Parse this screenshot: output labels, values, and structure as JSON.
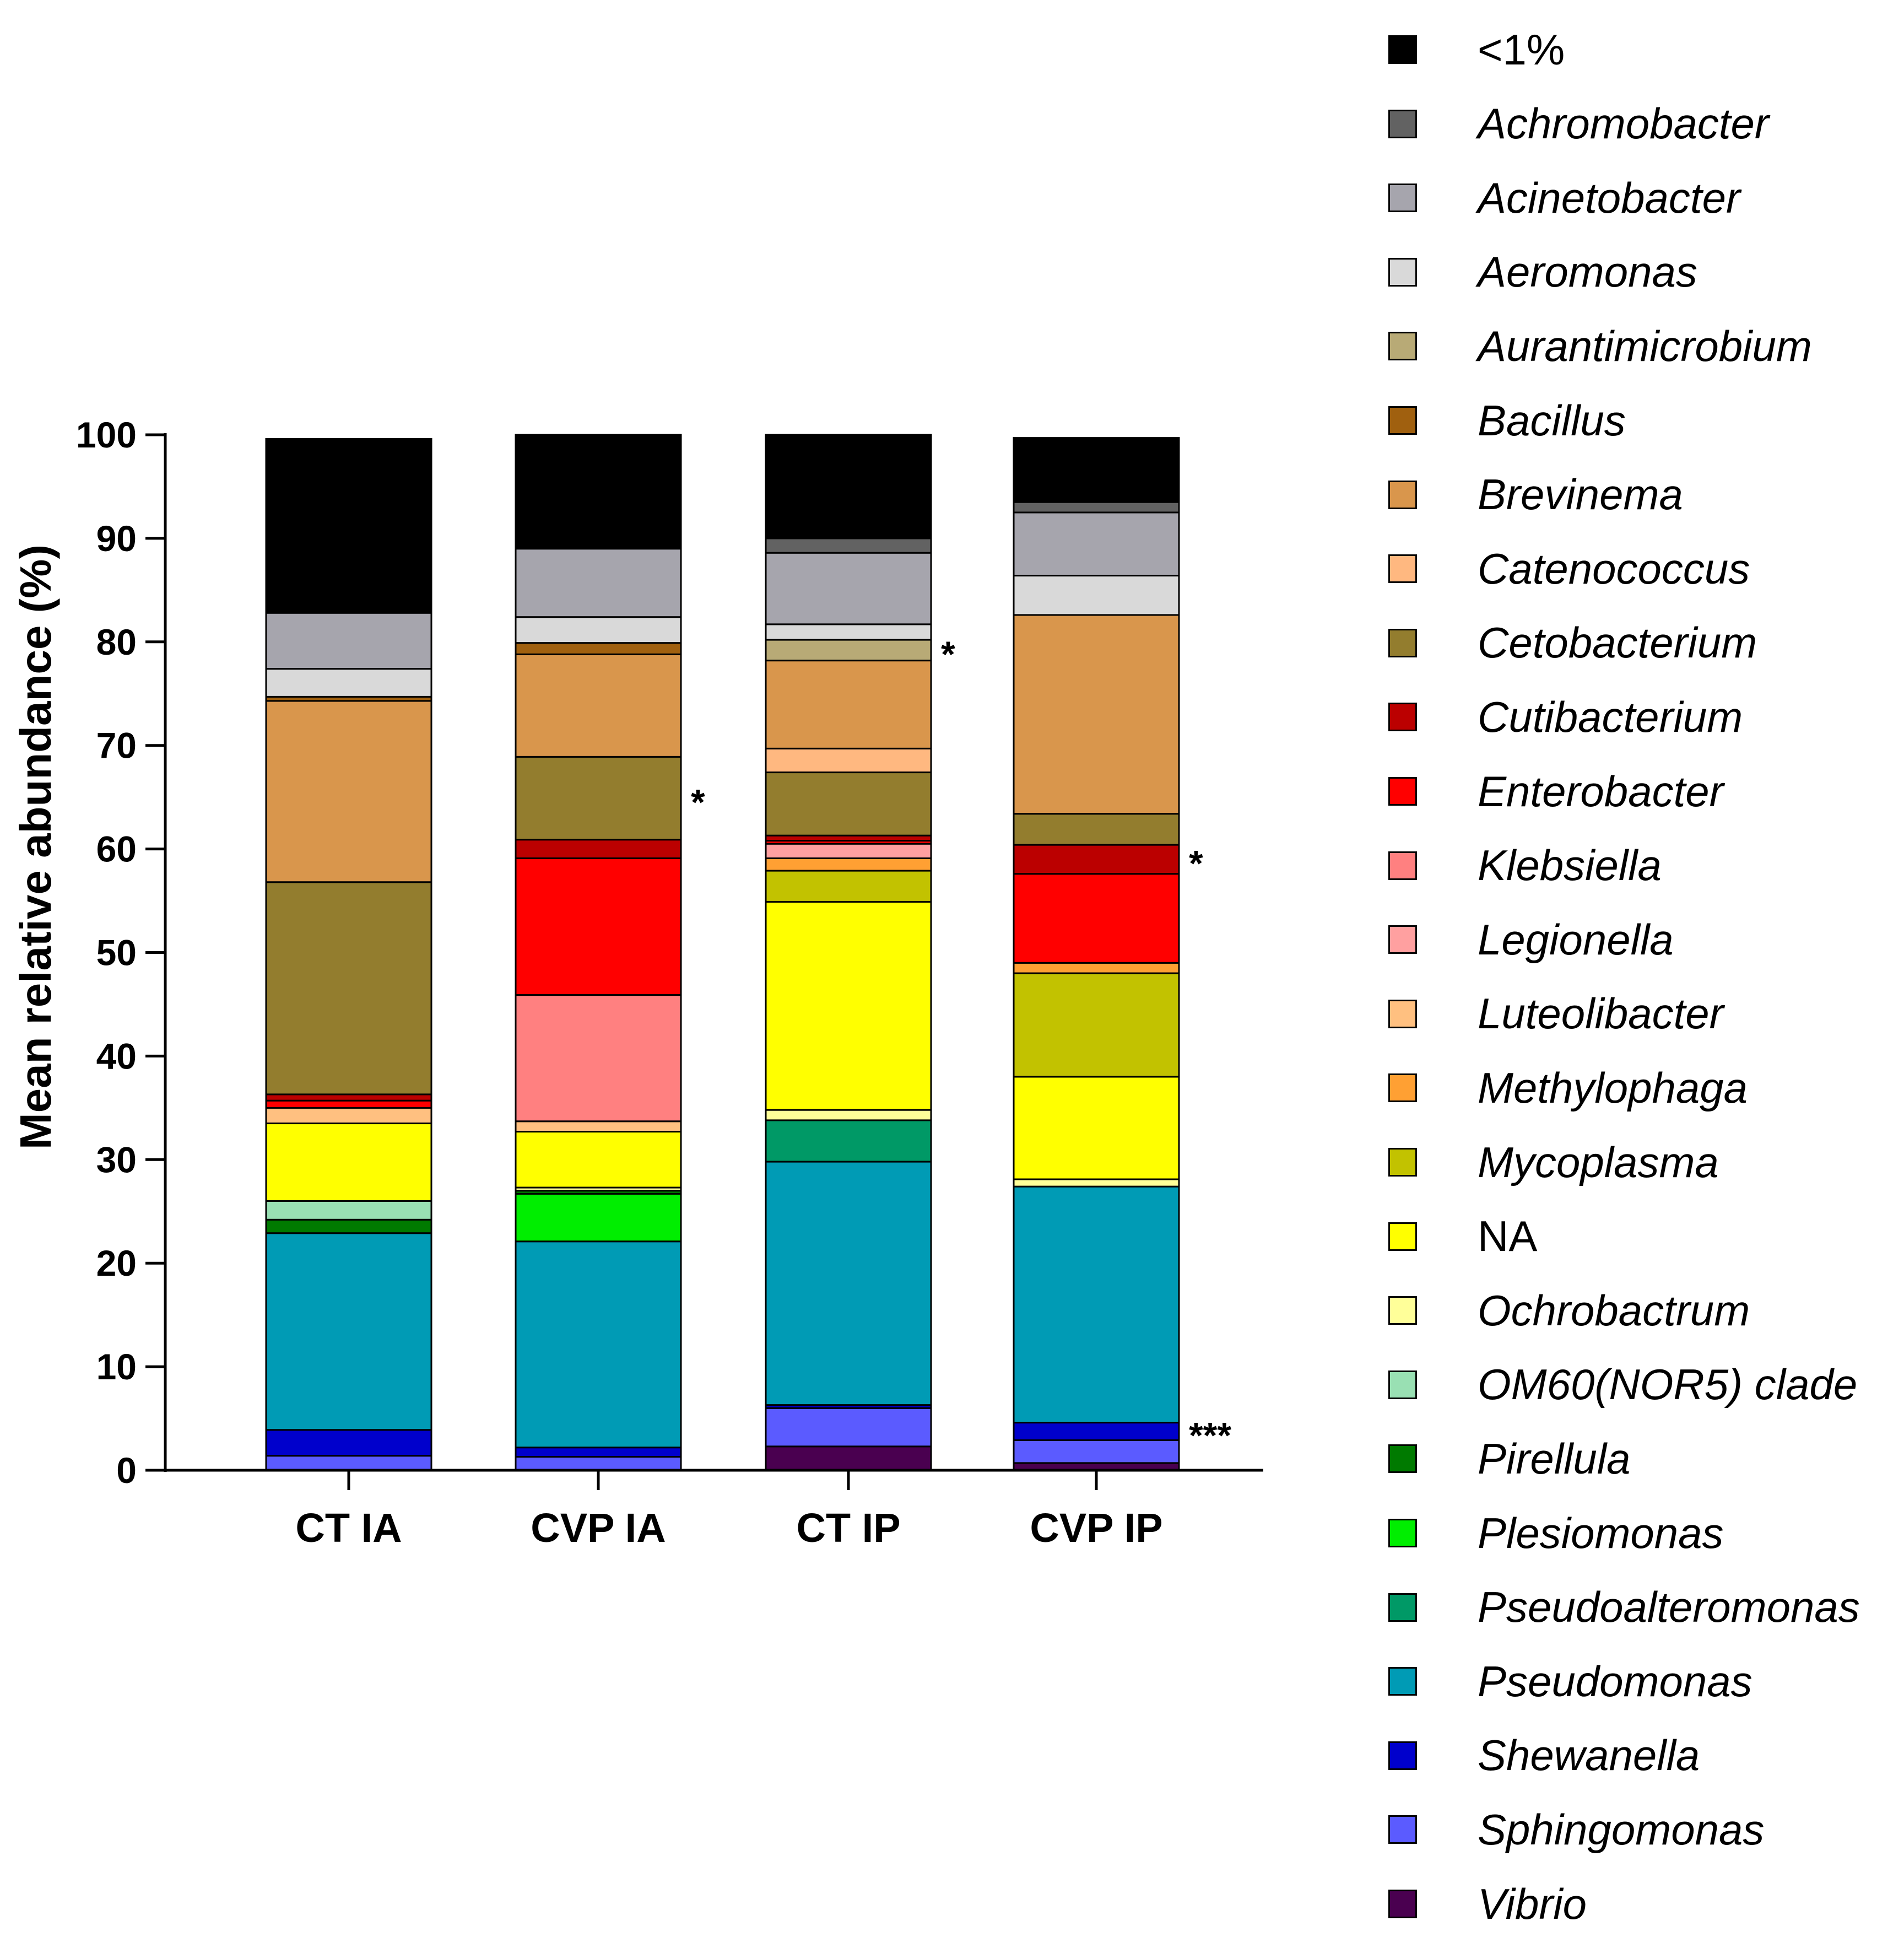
{
  "chart_data": {
    "type": "bar",
    "stacked": true,
    "title": "",
    "xlabel": "",
    "ylabel": "Mean relative abundance (%)",
    "ylim": [
      0,
      100
    ],
    "yticks": [
      "0",
      "10",
      "20",
      "30",
      "40",
      "50",
      "60",
      "70",
      "80",
      "90",
      "100"
    ],
    "grid": false,
    "legend_position": "right",
    "categories": [
      "CT IA",
      "CVP IA",
      "CT IP",
      "CVP IP"
    ],
    "significance": [
      {
        "category": "CVP IA",
        "genus": "Cetobacterium",
        "label": "*"
      },
      {
        "category": "CT IP",
        "genus": "Aurantimicrobium",
        "label": "*"
      },
      {
        "category": "CVP IP",
        "genus": "Cutibacterium",
        "label": "*"
      },
      {
        "category": "CVP IP",
        "genus": "Shewanella",
        "label": "***"
      }
    ],
    "series": [
      {
        "name": "Vibrio",
        "italic": true,
        "color": "#4A0050",
        "values": [
          0,
          0,
          2.3,
          0.7
        ]
      },
      {
        "name": "Sphingomonas",
        "italic": true,
        "color": "#5B5BFF",
        "values": [
          1.4,
          1.3,
          3.7,
          2.2
        ]
      },
      {
        "name": "Shewanella",
        "italic": true,
        "color": "#0000CC",
        "values": [
          2.5,
          0.9,
          0.3,
          1.7
        ]
      },
      {
        "name": "Pseudomonas",
        "italic": true,
        "color": "#009BB5",
        "values": [
          19.0,
          19.9,
          23.5,
          22.8
        ]
      },
      {
        "name": "Pseudoalteromonas",
        "italic": true,
        "color": "#009966",
        "values": [
          0,
          0,
          4.0,
          0
        ]
      },
      {
        "name": "Plesiomonas",
        "italic": true,
        "color": "#00EE00",
        "values": [
          0,
          4.6,
          0,
          0
        ]
      },
      {
        "name": "Pirellula",
        "italic": true,
        "color": "#007A00",
        "values": [
          1.3,
          0.3,
          0,
          0
        ]
      },
      {
        "name": "OM60(NOR5) clade",
        "italic": true,
        "color": "#99E0B3",
        "values": [
          1.8,
          0,
          0,
          0
        ]
      },
      {
        "name": "Ochrobactrum",
        "italic": true,
        "color": "#FFFF99",
        "values": [
          0,
          0.3,
          1.0,
          0.7
        ]
      },
      {
        "name": "NA",
        "italic": false,
        "color": "#FFFF00",
        "values": [
          7.5,
          5.4,
          20.1,
          9.9
        ]
      },
      {
        "name": "Mycoplasma",
        "italic": true,
        "color": "#C2C200",
        "values": [
          0,
          0,
          3.0,
          10.0
        ]
      },
      {
        "name": "Methylophaga",
        "italic": true,
        "color": "#FFA033",
        "values": [
          0,
          0,
          1.2,
          1.0
        ]
      },
      {
        "name": "Luteolibacter",
        "italic": true,
        "color": "#FFC080",
        "values": [
          1.5,
          1.0,
          0,
          0
        ]
      },
      {
        "name": "Legionella",
        "italic": true,
        "color": "#FFA0A0",
        "values": [
          0,
          0,
          1.4,
          0
        ]
      },
      {
        "name": "Klebsiella",
        "italic": true,
        "color": "#FF8080",
        "values": [
          0,
          12.2,
          0,
          0
        ]
      },
      {
        "name": "Enterobacter",
        "italic": true,
        "color": "#FF0000",
        "values": [
          0.7,
          13.2,
          0.3,
          8.6
        ]
      },
      {
        "name": "Cutibacterium",
        "italic": true,
        "color": "#BB0000",
        "values": [
          0.6,
          1.8,
          0.5,
          2.8
        ]
      },
      {
        "name": "Cetobacterium",
        "italic": true,
        "color": "#937D2E",
        "values": [
          20.5,
          8.0,
          6.1,
          3.0
        ]
      },
      {
        "name": "Catenococcus",
        "italic": true,
        "color": "#FFB880",
        "values": [
          0,
          0,
          2.3,
          0
        ]
      },
      {
        "name": "Brevinema",
        "italic": true,
        "color": "#D9964C",
        "values": [
          17.5,
          9.9,
          8.5,
          19.2
        ]
      },
      {
        "name": "Bacillus",
        "italic": true,
        "color": "#A0600F",
        "values": [
          0.4,
          1.1,
          0,
          0
        ]
      },
      {
        "name": "Aurantimicrobium",
        "italic": true,
        "color": "#B8AA76",
        "values": [
          0,
          0,
          2.0,
          0
        ]
      },
      {
        "name": "Aeromonas",
        "italic": true,
        "color": "#D9D9D9",
        "values": [
          2.7,
          2.5,
          1.5,
          3.8
        ]
      },
      {
        "name": "Acinetobacter",
        "italic": true,
        "color": "#A6A5AD",
        "values": [
          5.4,
          6.6,
          6.9,
          6.1
        ]
      },
      {
        "name": "Achromobacter",
        "italic": true,
        "color": "#626262",
        "values": [
          0,
          0,
          1.4,
          1.0
        ]
      },
      {
        "name": "<1%",
        "italic": false,
        "color": "#000000",
        "values": [
          16.8,
          11.0,
          10.0,
          6.2
        ]
      }
    ]
  },
  "legend_order": [
    "<1%",
    "Achromobacter",
    "Acinetobacter",
    "Aeromonas",
    "Aurantimicrobium",
    "Bacillus",
    "Brevinema",
    "Catenococcus",
    "Cetobacterium",
    "Cutibacterium",
    "Enterobacter",
    "Klebsiella",
    "Legionella",
    "Luteolibacter",
    "Methylophaga",
    "Mycoplasma",
    "NA",
    "Ochrobactrum",
    "OM60(NOR5) clade",
    "Pirellula",
    "Plesiomonas",
    "Pseudoalteromonas",
    "Pseudomonas",
    "Shewanella",
    "Sphingomonas",
    "Vibrio"
  ]
}
